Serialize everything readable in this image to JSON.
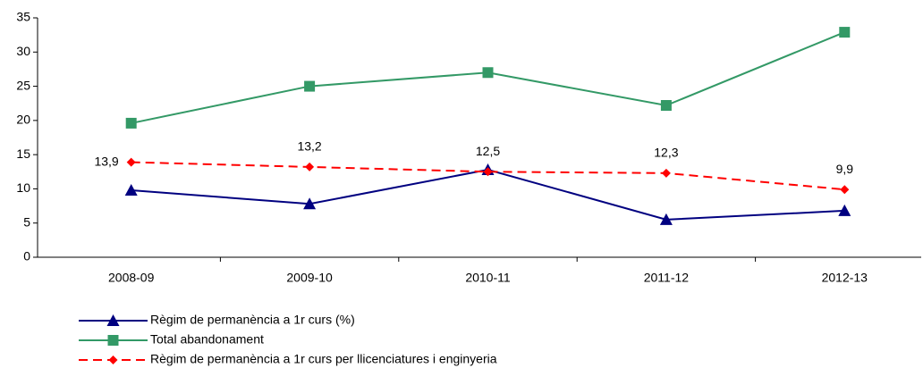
{
  "chart_data": {
    "type": "line",
    "categories": [
      "2008-09",
      "2009-10",
      "2010-11",
      "2011-12",
      "2012-13"
    ],
    "series": [
      {
        "name": "Règim de permanència a 1r curs (%)",
        "color": "#000080",
        "marker": "triangle",
        "dashed": false,
        "values": [
          9.8,
          7.8,
          12.8,
          5.5,
          6.8
        ]
      },
      {
        "name": "Total abandonament",
        "color": "#339966",
        "marker": "square",
        "dashed": false,
        "values": [
          19.6,
          25,
          27,
          22.2,
          32.9
        ]
      },
      {
        "name": "Règim de permanència a 1r curs per llicenciatures i enginyeria",
        "color": "#ff0000",
        "marker": "diamond",
        "dashed": true,
        "values": [
          13.9,
          13.2,
          12.5,
          12.3,
          9.9
        ],
        "value_labels": [
          "13,9",
          "13,2",
          "12,5",
          "12,3",
          "9,9"
        ]
      }
    ],
    "ylim": [
      0,
      35
    ],
    "yticks": [
      0,
      5,
      10,
      15,
      20,
      25,
      30,
      35
    ],
    "grid": false,
    "legend": "bottom-left"
  }
}
